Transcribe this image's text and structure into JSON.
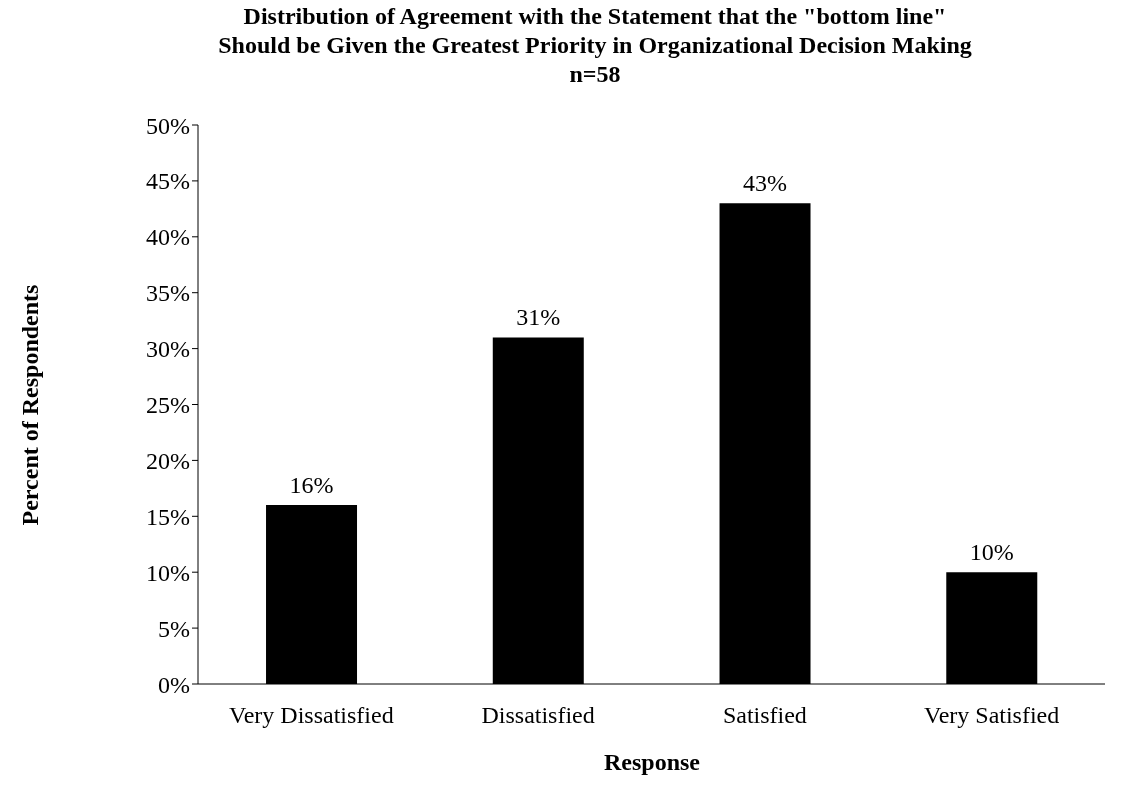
{
  "chart_data": {
    "type": "bar",
    "title": "Distribution of Agreement with the Statement that the \"bottom line\" Should be Given the Greatest Priority in Organizational Decision Making",
    "subtitle": "n=58",
    "xlabel": "Response",
    "ylabel": "Percent of Respondents",
    "categories": [
      "Very Dissatisfied",
      "Dissatisfied",
      "Satisfied",
      "Very Satisfied"
    ],
    "values": [
      16,
      31,
      43,
      10
    ],
    "color": "#000000",
    "value_labels": [
      "16%",
      "31%",
      "43%",
      "10%"
    ],
    "ylim": [
      0,
      50
    ],
    "yticks": [
      {
        "value": 0,
        "label": "0%"
      },
      {
        "value": 5,
        "label": "5%"
      },
      {
        "value": 10,
        "label": "10%"
      },
      {
        "value": 15,
        "label": "15%"
      },
      {
        "value": 20,
        "label": "20%"
      },
      {
        "value": 25,
        "label": "25%"
      },
      {
        "value": 30,
        "label": "30%"
      },
      {
        "value": 35,
        "label": "35%"
      },
      {
        "value": 40,
        "label": "40%"
      },
      {
        "value": 45,
        "label": "45%"
      },
      {
        "value": 50,
        "label": "50%"
      }
    ]
  }
}
